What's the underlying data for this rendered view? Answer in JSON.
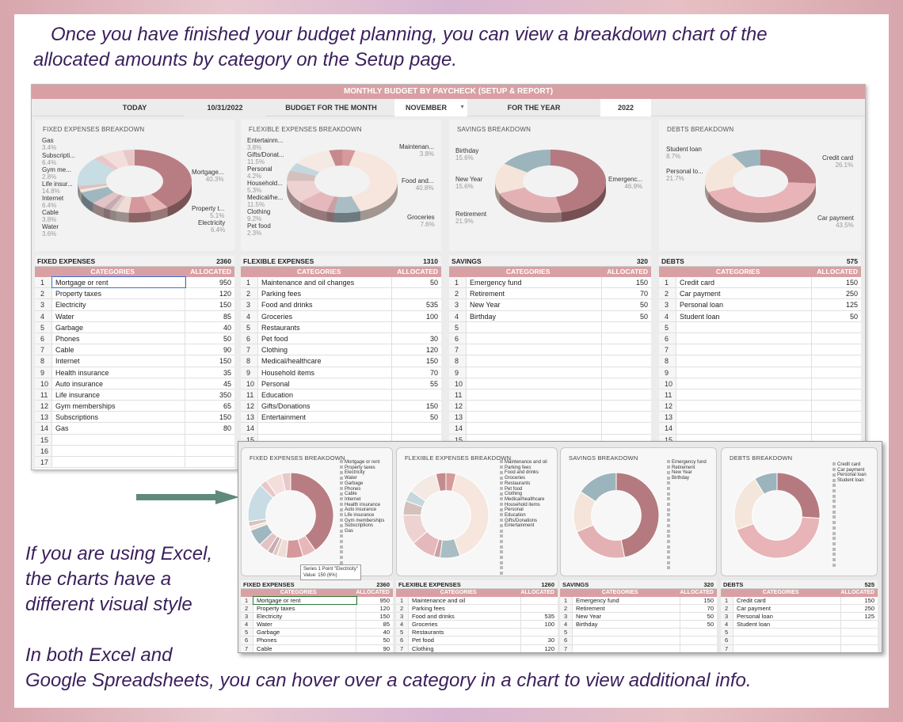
{
  "captions": {
    "top_line1": "Once you have finished your budget planning, you can view a breakdown chart of the",
    "top_line2": "allocated amounts by category on the Setup page.",
    "excel_line1": "If you are using Excel,",
    "excel_line2": "the charts have a",
    "excel_line3": "different visual style",
    "both_line1": "In both Excel and",
    "both_line2": "Google Spreadsheets, you can hover over a category in a chart to view additional info."
  },
  "sheet": {
    "banner": "MONTHLY BUDGET BY PAYCHECK (SETUP & REPORT)",
    "today_label": "TODAY",
    "today_value": "10/31/2022",
    "budget_month_label": "BUDGET FOR THE MONTH",
    "month_value": "NOVEMBER",
    "year_label": "FOR THE YEAR",
    "year_value": "2022"
  },
  "charts": {
    "fixed": {
      "title": "FIXED EXPENSES BREAKDOWN",
      "labels": [
        {
          "name": "Gas",
          "pct": "3.4%"
        },
        {
          "name": "Subscripti...",
          "pct": "6.4%"
        },
        {
          "name": "Gym me...",
          "pct": "2.8%"
        },
        {
          "name": "Life insur...",
          "pct": "14.8%"
        },
        {
          "name": "Internet",
          "pct": "6.4%"
        },
        {
          "name": "Cable",
          "pct": "3.8%"
        },
        {
          "name": "Water",
          "pct": "3.6%"
        },
        {
          "name": "Mortgage...",
          "pct": "40.3%"
        },
        {
          "name": "Property t...",
          "pct": "5.1%"
        },
        {
          "name": "Electricity",
          "pct": "6.4%"
        }
      ]
    },
    "flexible": {
      "title": "FLEXIBLE EXPENSES BREAKDOWN",
      "labels": [
        {
          "name": "Entertainm...",
          "pct": "3.8%"
        },
        {
          "name": "Gifts/Donat...",
          "pct": "11.5%"
        },
        {
          "name": "Personal",
          "pct": "4.2%"
        },
        {
          "name": "Household...",
          "pct": "5.3%"
        },
        {
          "name": "Medical/he...",
          "pct": "11.5%"
        },
        {
          "name": "Clothing",
          "pct": "9.2%"
        },
        {
          "name": "Pet food",
          "pct": "2.3%"
        },
        {
          "name": "Maintenan...",
          "pct": "3.8%"
        },
        {
          "name": "Food and...",
          "pct": "40.8%"
        },
        {
          "name": "Groceries",
          "pct": "7.6%"
        }
      ]
    },
    "savings": {
      "title": "SAVINGS BREAKDOWN",
      "labels": [
        {
          "name": "Birthday",
          "pct": "15.6%"
        },
        {
          "name": "New Year",
          "pct": "15.6%"
        },
        {
          "name": "Retirement",
          "pct": "21.9%"
        },
        {
          "name": "Emergenc...",
          "pct": "46.9%"
        }
      ]
    },
    "debts": {
      "title": "DEBTS BREAKDOWN",
      "labels": [
        {
          "name": "Student loan",
          "pct": "8.7%"
        },
        {
          "name": "Personal lo...",
          "pct": "21.7%"
        },
        {
          "name": "Credit card",
          "pct": "26.1%"
        },
        {
          "name": "Car payment",
          "pct": "43.5%"
        }
      ]
    }
  },
  "tables": {
    "col_categories": "CATEGORIES",
    "col_allocated": "ALLOCATED",
    "fixed": {
      "title": "FIXED EXPENSES",
      "total": "2360",
      "rows": [
        {
          "n": "1",
          "c": "Mortgage or rent",
          "v": "950"
        },
        {
          "n": "2",
          "c": "Property taxes",
          "v": "120"
        },
        {
          "n": "3",
          "c": "Electricity",
          "v": "150"
        },
        {
          "n": "4",
          "c": "Water",
          "v": "85"
        },
        {
          "n": "5",
          "c": "Garbage",
          "v": "40"
        },
        {
          "n": "6",
          "c": "Phones",
          "v": "50"
        },
        {
          "n": "7",
          "c": "Cable",
          "v": "90"
        },
        {
          "n": "8",
          "c": "Internet",
          "v": "150"
        },
        {
          "n": "9",
          "c": "Health insurance",
          "v": "35"
        },
        {
          "n": "10",
          "c": "Auto insurance",
          "v": "45"
        },
        {
          "n": "11",
          "c": "Life insurance",
          "v": "350"
        },
        {
          "n": "12",
          "c": "Gym memberships",
          "v": "65"
        },
        {
          "n": "13",
          "c": "Subscriptions",
          "v": "150"
        },
        {
          "n": "14",
          "c": "Gas",
          "v": "80"
        },
        {
          "n": "15",
          "c": "",
          "v": ""
        },
        {
          "n": "16",
          "c": "",
          "v": ""
        },
        {
          "n": "17",
          "c": "",
          "v": ""
        }
      ]
    },
    "flexible": {
      "title": "FLEXIBLE EXPENSES",
      "total": "1310",
      "rows": [
        {
          "n": "1",
          "c": "Maintenance and oil changes",
          "v": "50"
        },
        {
          "n": "2",
          "c": "Parking fees",
          "v": ""
        },
        {
          "n": "3",
          "c": "Food and drinks",
          "v": "535"
        },
        {
          "n": "4",
          "c": "Groceries",
          "v": "100"
        },
        {
          "n": "5",
          "c": "Restaurants",
          "v": ""
        },
        {
          "n": "6",
          "c": "Pet food",
          "v": "30"
        },
        {
          "n": "7",
          "c": "Clothing",
          "v": "120"
        },
        {
          "n": "8",
          "c": "Medical/healthcare",
          "v": "150"
        },
        {
          "n": "9",
          "c": "Household items",
          "v": "70"
        },
        {
          "n": "10",
          "c": "Personal",
          "v": "55"
        },
        {
          "n": "11",
          "c": "Education",
          "v": ""
        },
        {
          "n": "12",
          "c": "Gifts/Donations",
          "v": "150"
        },
        {
          "n": "13",
          "c": "Entertainment",
          "v": "50"
        },
        {
          "n": "14",
          "c": "",
          "v": ""
        },
        {
          "n": "15",
          "c": "",
          "v": ""
        }
      ]
    },
    "savings": {
      "title": "SAVINGS",
      "total": "320",
      "rows": [
        {
          "n": "1",
          "c": "Emergency fund",
          "v": "150"
        },
        {
          "n": "2",
          "c": "Retirement",
          "v": "70"
        },
        {
          "n": "3",
          "c": "New Year",
          "v": "50"
        },
        {
          "n": "4",
          "c": "Birthday",
          "v": "50"
        },
        {
          "n": "5",
          "c": "",
          "v": ""
        },
        {
          "n": "6",
          "c": "",
          "v": ""
        },
        {
          "n": "7",
          "c": "",
          "v": ""
        },
        {
          "n": "8",
          "c": "",
          "v": ""
        },
        {
          "n": "9",
          "c": "",
          "v": ""
        },
        {
          "n": "10",
          "c": "",
          "v": ""
        },
        {
          "n": "11",
          "c": "",
          "v": ""
        },
        {
          "n": "12",
          "c": "",
          "v": ""
        },
        {
          "n": "13",
          "c": "",
          "v": ""
        },
        {
          "n": "14",
          "c": "",
          "v": ""
        },
        {
          "n": "15",
          "c": "",
          "v": ""
        }
      ]
    },
    "debts": {
      "title": "DEBTS",
      "total": "575",
      "rows": [
        {
          "n": "1",
          "c": "Credit card",
          "v": "150"
        },
        {
          "n": "2",
          "c": "Car payment",
          "v": "250"
        },
        {
          "n": "3",
          "c": "Personal loan",
          "v": "125"
        },
        {
          "n": "4",
          "c": "Student loan",
          "v": "50"
        },
        {
          "n": "5",
          "c": "",
          "v": ""
        },
        {
          "n": "6",
          "c": "",
          "v": ""
        },
        {
          "n": "7",
          "c": "",
          "v": ""
        },
        {
          "n": "8",
          "c": "",
          "v": ""
        },
        {
          "n": "9",
          "c": "",
          "v": ""
        },
        {
          "n": "10",
          "c": "",
          "v": ""
        },
        {
          "n": "11",
          "c": "",
          "v": ""
        },
        {
          "n": "12",
          "c": "",
          "v": ""
        },
        {
          "n": "13",
          "c": "",
          "v": ""
        },
        {
          "n": "14",
          "c": "",
          "v": ""
        },
        {
          "n": "15",
          "c": "",
          "v": ""
        }
      ]
    }
  },
  "excel": {
    "tooltip_line1": "Series 1 Point \"Electricity\"",
    "tooltip_line2": "Value: 150 (6%)",
    "legend_fixed": [
      "Mortgage or rent",
      "Property taxes",
      "Electricity",
      "Water",
      "Garbage",
      "Phones",
      "Cable",
      "Internet",
      "Health insurance",
      "Auto insurance",
      "Life insurance",
      "Gym memberships",
      "Subscriptions",
      "Gas"
    ],
    "legend_flexible": [
      "Maintenance and oil",
      "Parking fees",
      "Food and drinks",
      "Groceries",
      "Restaurants",
      "Pet food",
      "Clothing",
      "Medical/healthcare",
      "Household items",
      "Personal",
      "Education",
      "Gifts/Donations",
      "Entertainment"
    ],
    "legend_savings": [
      "Emergency fund",
      "Retirement",
      "New Year",
      "Birthday"
    ],
    "legend_debts": [
      "Credit card",
      "Car payment",
      "Personal loan",
      "Student loan"
    ],
    "tables": {
      "fixed": {
        "title": "FIXED EXPENSES",
        "total": "2360",
        "rows": [
          {
            "n": "1",
            "c": "Mortgage or rent",
            "v": "950"
          },
          {
            "n": "2",
            "c": "Property taxes",
            "v": "120"
          },
          {
            "n": "3",
            "c": "Electricity",
            "v": "150"
          },
          {
            "n": "4",
            "c": "Water",
            "v": "85"
          },
          {
            "n": "5",
            "c": "Garbage",
            "v": "40"
          },
          {
            "n": "6",
            "c": "Phones",
            "v": "50"
          },
          {
            "n": "7",
            "c": "Cable",
            "v": "90"
          }
        ]
      },
      "flexible": {
        "title": "FLEXIBLE EXPENSES",
        "total": "1260",
        "rows": [
          {
            "n": "1",
            "c": "Maintenance and oil",
            "v": ""
          },
          {
            "n": "2",
            "c": "Parking fees",
            "v": ""
          },
          {
            "n": "3",
            "c": "Food and drinks",
            "v": "535"
          },
          {
            "n": "4",
            "c": "Groceries",
            "v": "100"
          },
          {
            "n": "5",
            "c": "Restaurants",
            "v": ""
          },
          {
            "n": "6",
            "c": "Pet food",
            "v": "30"
          },
          {
            "n": "7",
            "c": "Clothing",
            "v": "120"
          }
        ]
      },
      "savings": {
        "title": "SAVINGS",
        "total": "320",
        "rows": [
          {
            "n": "1",
            "c": "Emergency fund",
            "v": "150"
          },
          {
            "n": "2",
            "c": "Retirement",
            "v": "70"
          },
          {
            "n": "3",
            "c": "New Year",
            "v": "50"
          },
          {
            "n": "4",
            "c": "Birthday",
            "v": "50"
          },
          {
            "n": "5",
            "c": "",
            "v": ""
          },
          {
            "n": "6",
            "c": "",
            "v": ""
          },
          {
            "n": "7",
            "c": "",
            "v": ""
          }
        ]
      },
      "debts": {
        "title": "DEBTS",
        "total": "525",
        "rows": [
          {
            "n": "1",
            "c": "Credit card",
            "v": "150"
          },
          {
            "n": "2",
            "c": "Car payment",
            "v": "250"
          },
          {
            "n": "3",
            "c": "Personal loan",
            "v": "125"
          },
          {
            "n": "4",
            "c": "Student loan",
            "v": ""
          },
          {
            "n": "5",
            "c": "",
            "v": ""
          },
          {
            "n": "6",
            "c": "",
            "v": ""
          },
          {
            "n": "7",
            "c": "",
            "v": ""
          }
        ]
      }
    }
  },
  "colors": {
    "accent": "#d9a0a4",
    "caption": "#3a1f5c",
    "arrow": "#5f8a7a"
  },
  "donut_values": {
    "fixed": [
      950,
      120,
      150,
      85,
      40,
      50,
      90,
      150,
      35,
      45,
      350,
      65,
      150,
      80
    ],
    "flexible": [
      50,
      0,
      535,
      100,
      0,
      30,
      120,
      150,
      70,
      55,
      0,
      150,
      50
    ],
    "savings": [
      150,
      70,
      50,
      50
    ],
    "debts": [
      150,
      250,
      125,
      50
    ]
  }
}
